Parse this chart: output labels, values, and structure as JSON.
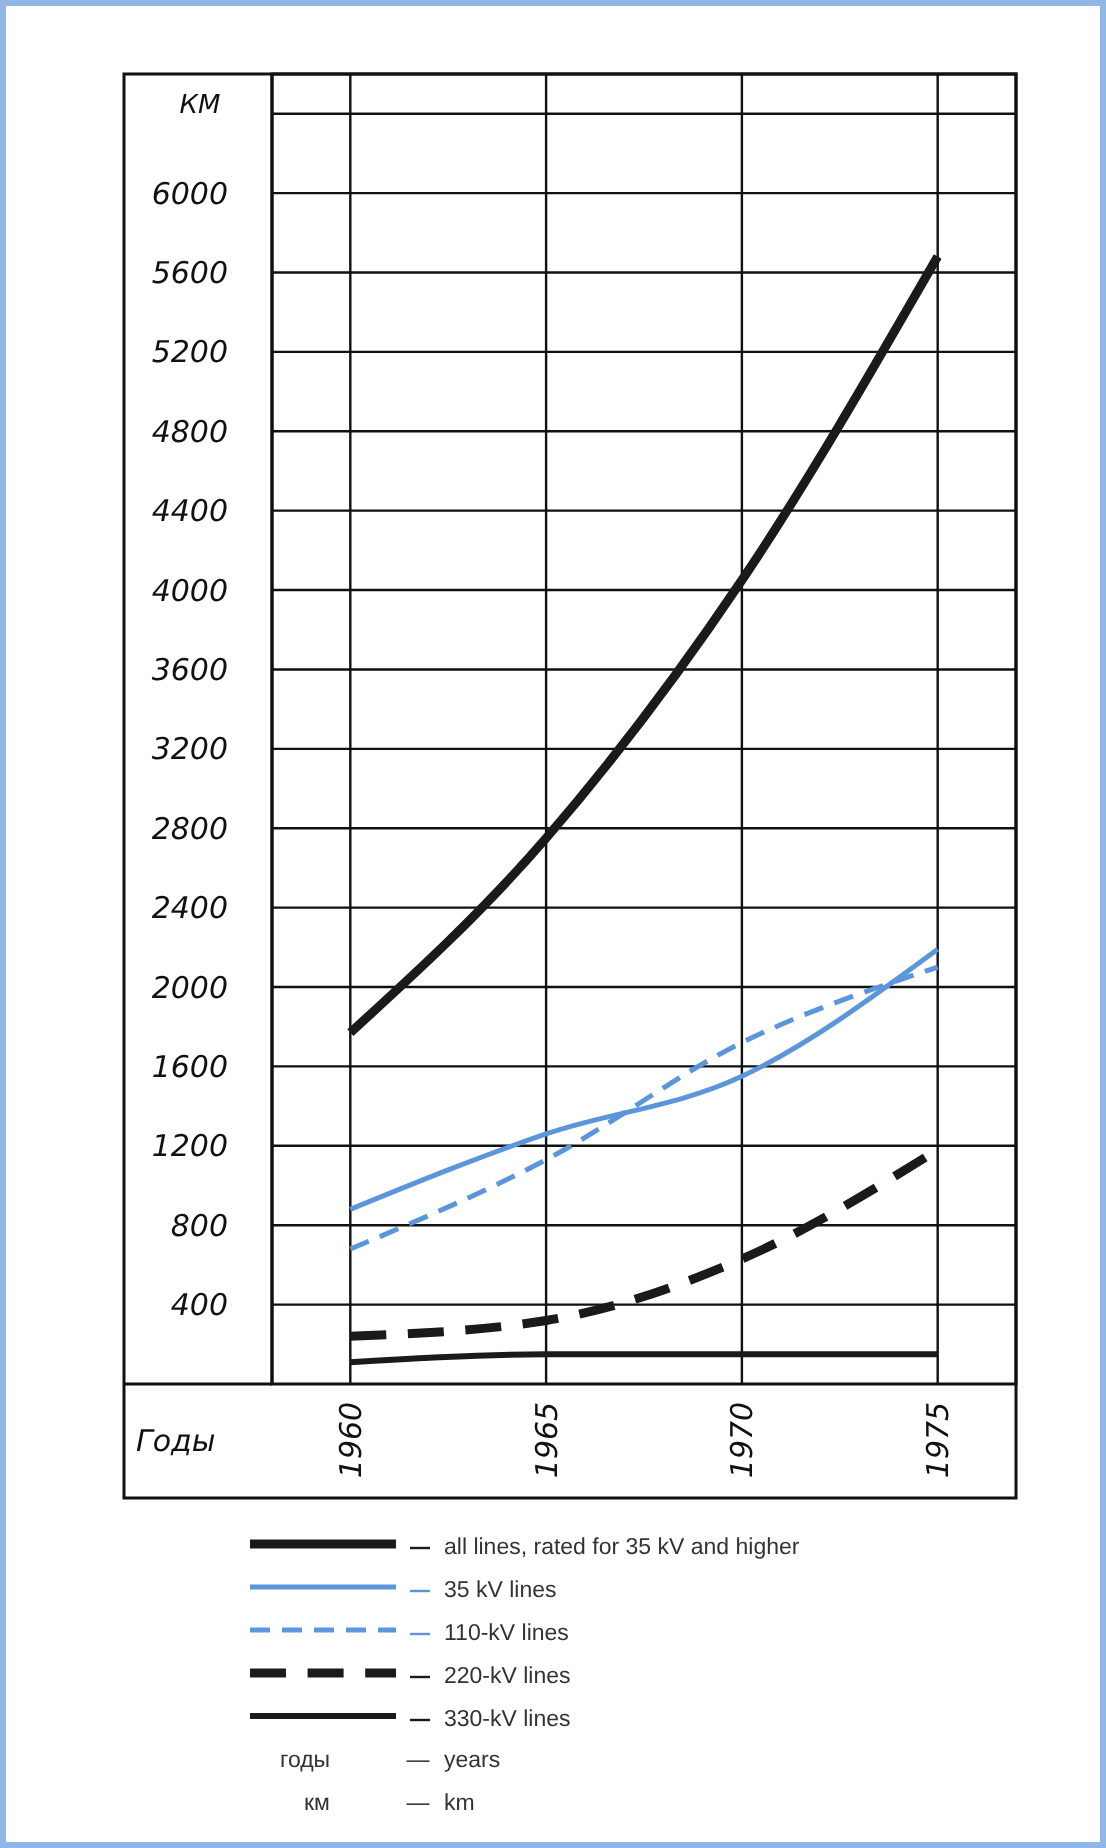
{
  "chart_data": {
    "type": "line",
    "ylabel": "КМ",
    "xlabel": "Годы",
    "x": [
      1960,
      1965,
      1970,
      1975
    ],
    "xlim": [
      1958,
      1977
    ],
    "xticks": [
      1960,
      1965,
      1970,
      1975
    ],
    "ylim": [
      0,
      6600
    ],
    "yticks": [
      400,
      800,
      1200,
      1600,
      2000,
      2400,
      2800,
      3200,
      3600,
      4000,
      4400,
      4800,
      5200,
      5600,
      6000,
      {
        "value": 6400,
        "label": null
      }
    ],
    "grid": true,
    "legend": "bottom",
    "marker": "none",
    "series": [
      {
        "name": "all lines, rated for 35 kV and higher",
        "color": "#1a1a1a",
        "line_style": "solid",
        "values": [
          1770,
          2750,
          4050,
          5680
        ]
      },
      {
        "name": "35 kV lines",
        "color": "#5b96dc",
        "line_style": "solid",
        "values": [
          880,
          1260,
          1550,
          2190
        ]
      },
      {
        "name": "110-kV lines",
        "color": "#5b96dc",
        "line_style": "dashed",
        "values": [
          680,
          1130,
          1720,
          2100
        ]
      },
      {
        "name": "220-kV lines",
        "color": "#1a1a1a",
        "line_style": "dashed",
        "values": [
          240,
          320,
          630,
          1180
        ]
      },
      {
        "name": "330-kV lines",
        "color": "#1a1a1a",
        "line_style": "solid",
        "values": [
          110,
          150,
          150,
          150
        ]
      }
    ],
    "annotations": [
      "годы — years",
      "км — km"
    ]
  }
}
